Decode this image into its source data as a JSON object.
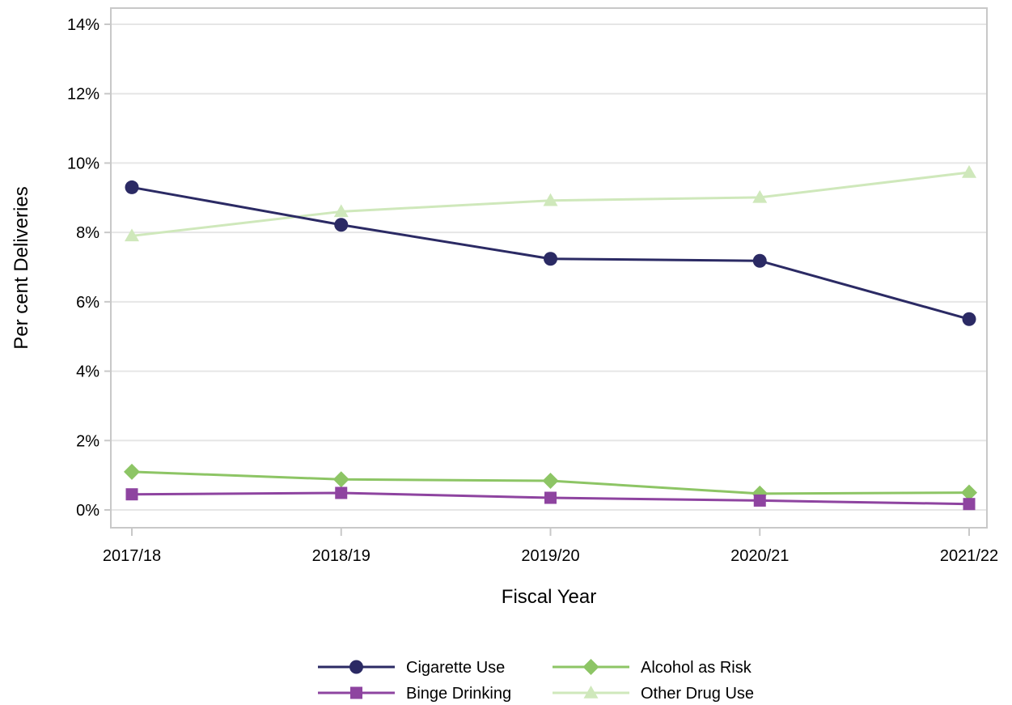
{
  "chart_data": {
    "type": "line",
    "title": "",
    "xlabel": "Fiscal Year",
    "ylabel": "Per cent Deliveries",
    "categories": [
      "2017/18",
      "2018/19",
      "2019/20",
      "2020/21",
      "2021/22"
    ],
    "ylim": [
      0,
      14
    ],
    "y_ticks": [
      0,
      2,
      4,
      6,
      8,
      10,
      12,
      14
    ],
    "y_tick_labels": [
      "0%",
      "2%",
      "4%",
      "6%",
      "8%",
      "10%",
      "12%",
      "14%"
    ],
    "grid": "horizontal",
    "legend_position": "bottom",
    "series": [
      {
        "name": "Cigarette Use",
        "values": [
          9.3,
          8.22,
          7.24,
          7.18,
          5.5
        ],
        "color": "#2b2a64",
        "marker": "circle"
      },
      {
        "name": "Binge Drinking",
        "values": [
          0.45,
          0.49,
          0.35,
          0.27,
          0.17
        ],
        "color": "#8e44a0",
        "marker": "square"
      },
      {
        "name": "Alcohol as Risk",
        "values": [
          1.1,
          0.88,
          0.84,
          0.47,
          0.5
        ],
        "color": "#8dc565",
        "marker": "diamond"
      },
      {
        "name": "Other Drug Use",
        "values": [
          7.9,
          8.6,
          8.92,
          9.01,
          9.73
        ],
        "color": "#cfe8bb",
        "marker": "triangle"
      }
    ]
  }
}
